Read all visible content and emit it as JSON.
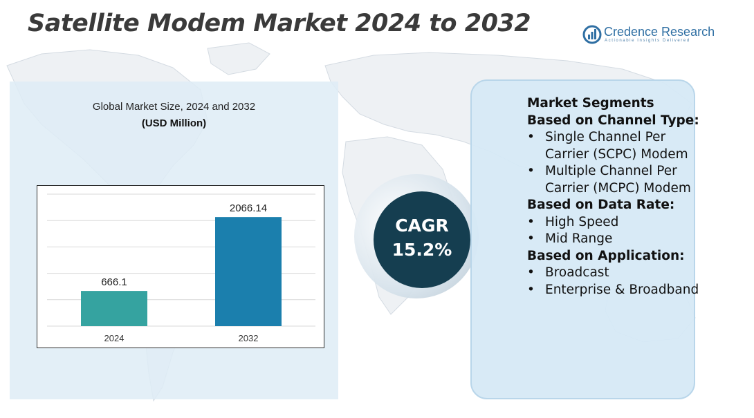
{
  "title": "Satellite Modem Market 2024 to 2032",
  "brand": {
    "name": "Credence Research",
    "tagline": "Actionable Insights Delivered",
    "color": "#2f6fa3"
  },
  "chart_data": {
    "type": "bar",
    "title": "Global Market Size, 2024 and 2032",
    "unit": "(USD Million)",
    "categories": [
      "2024",
      "2032"
    ],
    "values": [
      666.1,
      2066.14
    ],
    "value_labels": [
      "666.1",
      "2066.14"
    ],
    "colors": [
      "#35a3a0",
      "#1b7fad"
    ],
    "ylim": [
      0,
      2500
    ],
    "grid": true,
    "legend": "none"
  },
  "cagr": {
    "label": "CAGR",
    "value": "15.2%"
  },
  "segments": {
    "heading": "Market Segments",
    "groups": [
      {
        "title": "Based on Channel Type:",
        "items": [
          "Single Channel Per Carrier (SCPC) Modem",
          "Multiple Channel Per Carrier (MCPC) Modem"
        ]
      },
      {
        "title": "Based on Data Rate:",
        "items": [
          "High Speed",
          "Mid Range"
        ]
      },
      {
        "title": "Based on Application:",
        "items": [
          "Broadcast",
          "Enterprise & Broadband"
        ]
      }
    ]
  }
}
